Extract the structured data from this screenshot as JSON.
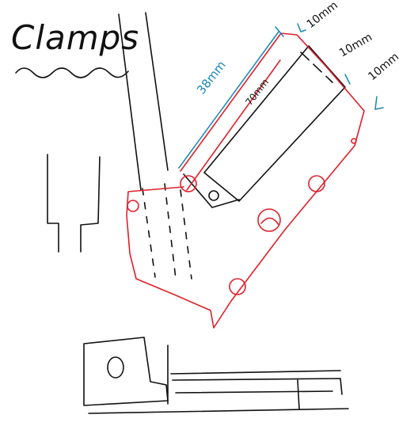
{
  "title": "Clamps",
  "dimensions": {
    "length_38": "38mm",
    "length_70": "70mm",
    "width_top": "10mm",
    "width_mid": "10mm",
    "width_right": "10mm"
  },
  "colors": {
    "ink": "#111111",
    "clamp_outline": "#e0202a",
    "dimension_lines": "#1a86b8"
  }
}
